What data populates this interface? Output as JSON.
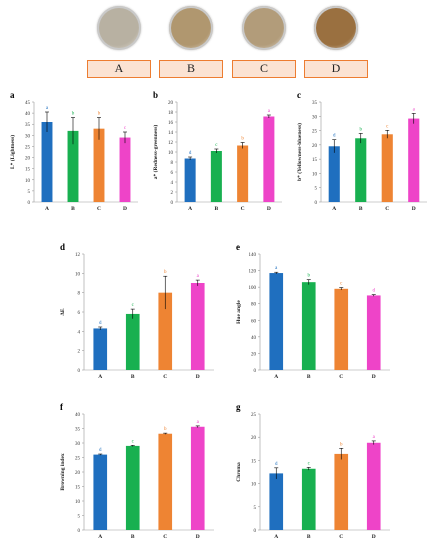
{
  "samples": [
    {
      "label": "A",
      "color": "#b8b1a2"
    },
    {
      "label": "B",
      "color": "#b0976f"
    },
    {
      "label": "C",
      "color": "#b29c7a"
    },
    {
      "label": "D",
      "color": "#9a7040"
    }
  ],
  "colors": {
    "A": "#1f6fbf",
    "B": "#18b050",
    "C": "#ee8433",
    "D": "#ee44c8"
  },
  "chart_data": [
    {
      "id": "a",
      "type": "bar",
      "categories": [
        "A",
        "B",
        "C",
        "D"
      ],
      "values": [
        36,
        32,
        33,
        29
      ],
      "errors": [
        4.5,
        6.0,
        5.0,
        2.5
      ],
      "letters": [
        "a",
        "b",
        "b",
        "c"
      ],
      "ylabel": "L* (Lightness)",
      "ylim": [
        0,
        45
      ],
      "yticks": [
        0,
        5,
        10,
        15,
        20,
        25,
        30,
        35,
        40,
        45
      ]
    },
    {
      "id": "b",
      "type": "bar",
      "categories": [
        "A",
        "B",
        "C",
        "D"
      ],
      "values": [
        8.7,
        10.2,
        11.3,
        17.1
      ],
      "errors": [
        0.3,
        0.4,
        0.6,
        0.3
      ],
      "letters": [
        "d",
        "c",
        "b",
        "a"
      ],
      "ylabel": "a* (Redness-greenness)",
      "ylim": [
        0,
        20
      ],
      "yticks": [
        0,
        2,
        4,
        6,
        8,
        10,
        12,
        14,
        16,
        18,
        20
      ]
    },
    {
      "id": "c",
      "type": "bar",
      "categories": [
        "A",
        "B",
        "C",
        "D"
      ],
      "values": [
        19.5,
        22.3,
        23.7,
        29.2
      ],
      "errors": [
        2.3,
        1.7,
        1.4,
        1.8
      ],
      "letters": [
        "d",
        "b",
        "c",
        "a"
      ],
      "ylabel": "b* (Yellowness-blueness)",
      "ylim": [
        0,
        35
      ],
      "yticks": [
        0,
        5,
        10,
        15,
        20,
        25,
        30,
        35
      ]
    },
    {
      "id": "d",
      "type": "bar",
      "categories": [
        "A",
        "B",
        "C",
        "D"
      ],
      "values": [
        4.3,
        5.8,
        8.0,
        9.0
      ],
      "errors": [
        0.15,
        0.5,
        1.7,
        0.3
      ],
      "letters": [
        "d",
        "c",
        "b",
        "a"
      ],
      "ylabel": "ΔE",
      "ylim": [
        0,
        12
      ],
      "yticks": [
        0,
        2,
        4,
        6,
        8,
        10,
        12
      ]
    },
    {
      "id": "e",
      "type": "bar",
      "categories": [
        "A",
        "B",
        "C",
        "D"
      ],
      "values": [
        117,
        106,
        98,
        90
      ],
      "errors": [
        1.0,
        3.0,
        1.5,
        1.0
      ],
      "letters": [
        "a",
        "b",
        "c",
        "d"
      ],
      "ylabel": "Hue angle",
      "ylim": [
        0,
        140
      ],
      "yticks": [
        0,
        20,
        40,
        60,
        80,
        100,
        120,
        140
      ]
    },
    {
      "id": "f",
      "type": "bar",
      "categories": [
        "A",
        "B",
        "C",
        "D"
      ],
      "values": [
        26.0,
        29.0,
        33.2,
        35.6
      ],
      "errors": [
        0.2,
        0.2,
        0.2,
        0.3
      ],
      "letters": [
        "d",
        "c",
        "b",
        "a"
      ],
      "ylabel": "Browning index",
      "ylim": [
        0,
        40
      ],
      "yticks": [
        0,
        5,
        10,
        15,
        20,
        25,
        30,
        35,
        40
      ]
    },
    {
      "id": "g",
      "type": "bar",
      "categories": [
        "A",
        "B",
        "C",
        "D"
      ],
      "values": [
        12.2,
        13.2,
        16.4,
        18.8
      ],
      "errors": [
        1.2,
        0.3,
        1.2,
        0.4
      ],
      "letters": [
        "d",
        "c",
        "b",
        "a"
      ],
      "ylabel": "Chroma",
      "ylim": [
        0,
        25
      ],
      "yticks": [
        0,
        5,
        10,
        15,
        20,
        25
      ]
    }
  ]
}
